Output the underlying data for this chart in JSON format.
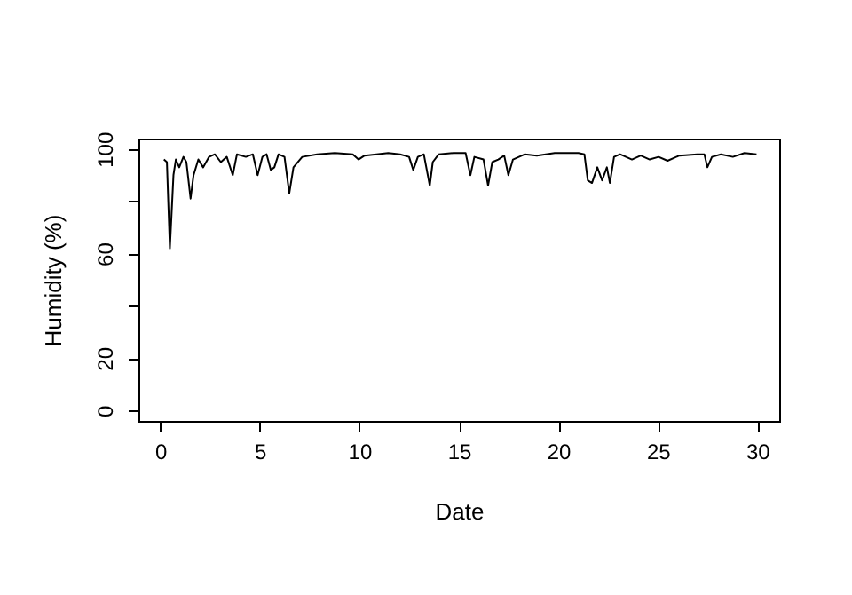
{
  "chart_data": {
    "type": "line",
    "xlabel": "Date",
    "ylabel": "Humidity (%)",
    "xlim": [
      -1.1,
      31.1
    ],
    "ylim": [
      -4,
      104
    ],
    "xticks": [
      0,
      5,
      10,
      15,
      20,
      25,
      30
    ],
    "yticks": [
      0,
      20,
      {
        "value": 40,
        "label": null
      },
      60,
      {
        "value": 80,
        "label": null
      },
      100
    ],
    "grid": false,
    "marker": "none",
    "line_style": "solid",
    "series": [
      {
        "color": "#000000",
        "x": [
          0.18,
          0.33,
          0.48,
          0.66,
          0.78,
          0.95,
          1.16,
          1.31,
          1.52,
          1.67,
          1.91,
          2.15,
          2.45,
          2.74,
          3.04,
          3.34,
          3.64,
          3.85,
          4.3,
          4.65,
          4.89,
          5.13,
          5.34,
          5.55,
          5.73,
          5.94,
          6.24,
          6.48,
          6.69,
          7.13,
          7.88,
          8.77,
          9.67,
          9.96,
          10.26,
          10.86,
          11.45,
          12.05,
          12.5,
          12.71,
          12.94,
          13.24,
          13.54,
          13.69,
          13.99,
          14.73,
          15.34,
          15.58,
          15.78,
          16.24,
          16.47,
          16.68,
          16.98,
          17.28,
          17.49,
          17.72,
          18.32,
          18.92,
          19.82,
          21.01,
          21.31,
          21.48,
          21.69,
          21.96,
          22.2,
          22.44,
          22.59,
          22.8,
          23.1,
          23.7,
          24.14,
          24.59,
          25.04,
          25.49,
          26.08,
          26.98,
          27.34,
          27.49,
          27.72,
          28.17,
          28.77,
          29.36,
          29.96
        ],
        "values": [
          96,
          95,
          62,
          90,
          96,
          93,
          97,
          95,
          81,
          90,
          96,
          93,
          97,
          98,
          95,
          97,
          90,
          98,
          97,
          98,
          90,
          97,
          98,
          92,
          93,
          98,
          97,
          83,
          93,
          97,
          98,
          98.5,
          98,
          96,
          97.5,
          98,
          98.5,
          98,
          97,
          92,
          97,
          98,
          86,
          95,
          98,
          98.5,
          98.5,
          90,
          97,
          96,
          86,
          95,
          96,
          97.5,
          90,
          96,
          98,
          97.5,
          98.5,
          98.5,
          98,
          88,
          87,
          93,
          88,
          93,
          87,
          97,
          98,
          96,
          97.5,
          96,
          97,
          95.5,
          97.5,
          98,
          98,
          93,
          97,
          98,
          97,
          98.5,
          98
        ]
      }
    ]
  }
}
